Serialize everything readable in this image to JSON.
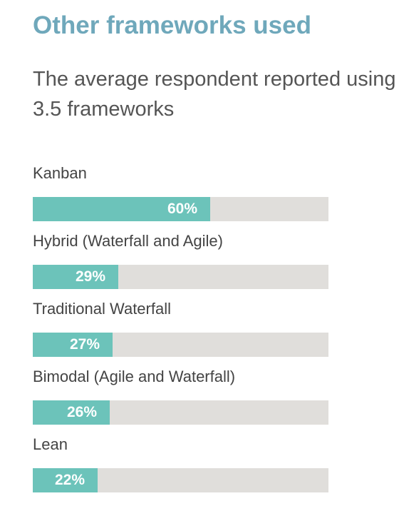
{
  "header": {
    "title": "Other frameworks used",
    "subtitle": "The average respondent reported using 3.5 frameworks"
  },
  "colors": {
    "title": "#6fa8bb",
    "bar": "#6cc3ba",
    "track": "#e0dedb"
  },
  "chart_data": {
    "type": "bar",
    "orientation": "horizontal",
    "title": "Other frameworks used",
    "subtitle": "The average respondent reported using 3.5 frameworks",
    "categories": [
      "Kanban",
      "Hybrid (Waterfall and Agile)",
      "Traditional Waterfall",
      "Bimodal (Agile and Waterfall)",
      "Lean"
    ],
    "values": [
      60,
      29,
      27,
      26,
      22
    ],
    "value_labels": [
      "60%",
      "29%",
      "27%",
      "26%",
      "22%"
    ],
    "unit": "%",
    "xlim": [
      0,
      100
    ],
    "grid": false,
    "legend": "none"
  }
}
